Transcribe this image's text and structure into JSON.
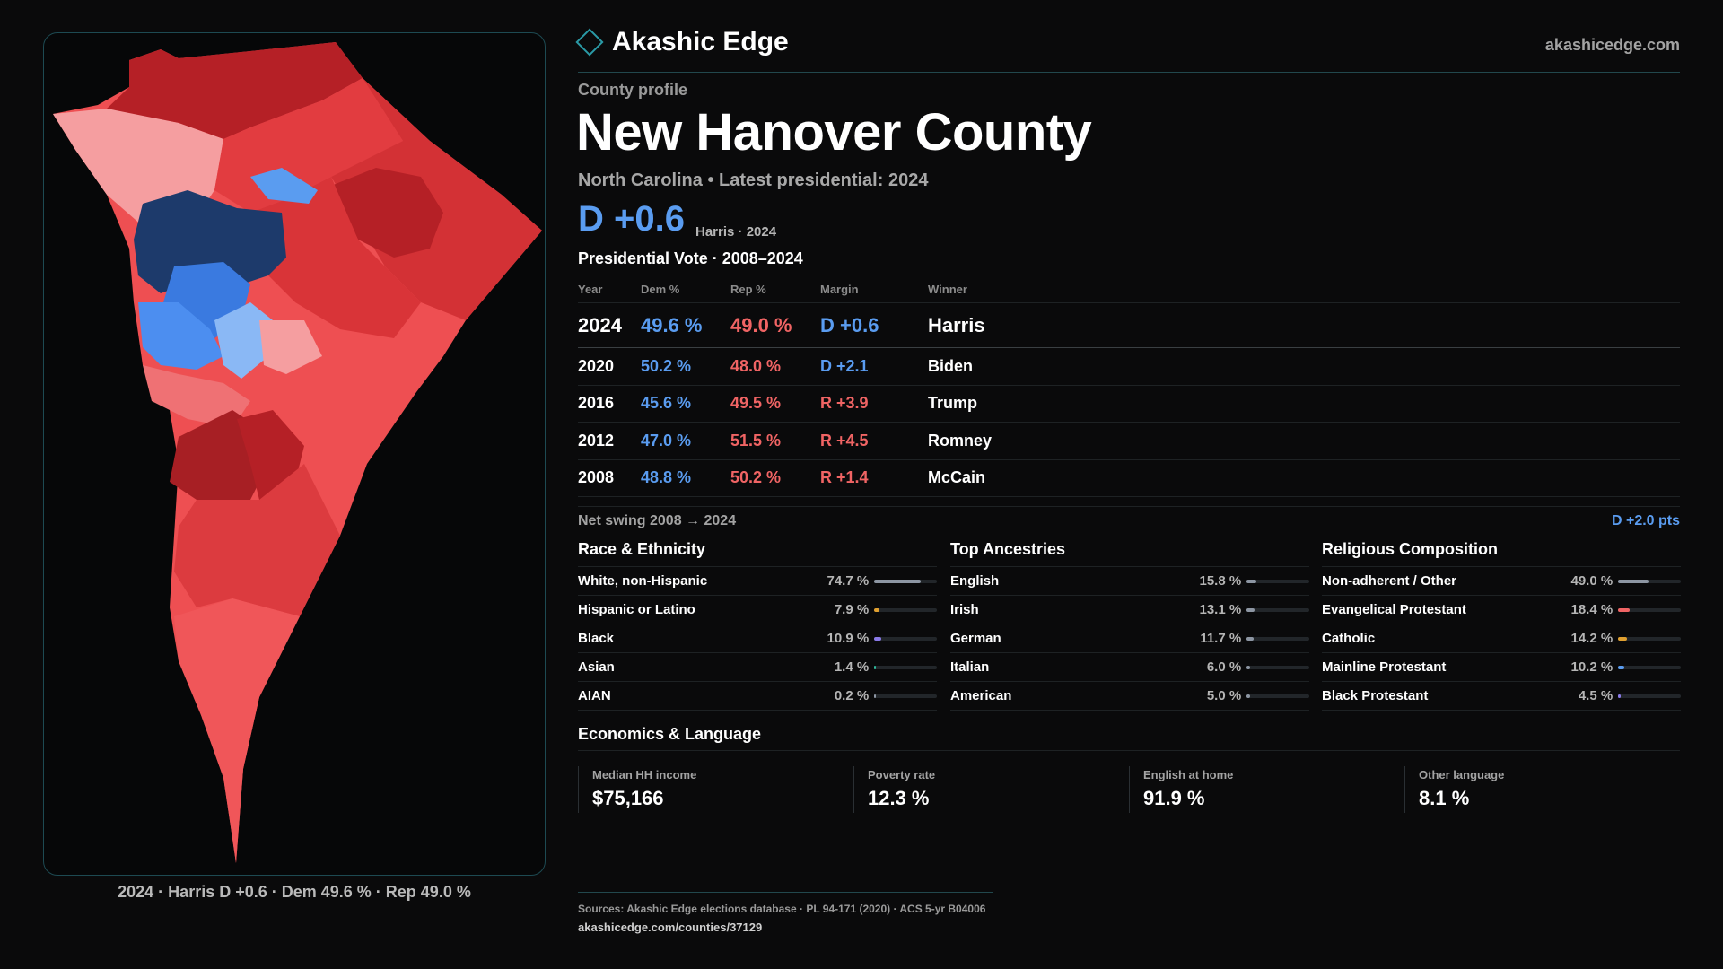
{
  "brand": {
    "name": "Akashic Edge",
    "domain": "akashicedge.com"
  },
  "profile": {
    "kicker": "County profile",
    "county": "New Hanover County",
    "subtitle": "North Carolina • Latest presidential: 2024",
    "margin": "D +0.6",
    "margin_note": "Harris · 2024"
  },
  "map": {
    "caption": "2024 · Harris D +0.6 · Dem 49.6 % · Rep 49.0 %"
  },
  "vote": {
    "title": "Presidential Vote · 2008–2024",
    "headers": {
      "year": "Year",
      "dem": "Dem %",
      "rep": "Rep %",
      "margin": "Margin",
      "winner": "Winner"
    },
    "rows": [
      {
        "year": "2024",
        "dem": "49.6 %",
        "rep": "49.0 %",
        "margin": "D +0.6",
        "party": "D",
        "winner": "Harris"
      },
      {
        "year": "2020",
        "dem": "50.2 %",
        "rep": "48.0 %",
        "margin": "D +2.1",
        "party": "D",
        "winner": "Biden"
      },
      {
        "year": "2016",
        "dem": "45.6 %",
        "rep": "49.5 %",
        "margin": "R +3.9",
        "party": "R",
        "winner": "Trump"
      },
      {
        "year": "2012",
        "dem": "47.0 %",
        "rep": "51.5 %",
        "margin": "R +4.5",
        "party": "R",
        "winner": "Romney"
      },
      {
        "year": "2008",
        "dem": "48.8 %",
        "rep": "50.2 %",
        "margin": "R +1.4",
        "party": "R",
        "winner": "McCain"
      }
    ],
    "swing_label": "Net swing 2008 → 2024",
    "swing_value": "D +2.0 pts"
  },
  "race": {
    "title": "Race & Ethnicity",
    "rows": [
      {
        "label": "White, non-Hispanic",
        "value": "74.7 %",
        "fraction": 0.747,
        "color": "#8d96a3"
      },
      {
        "label": "Hispanic or Latino",
        "value": "7.9 %",
        "fraction": 0.079,
        "color": "#e0a030"
      },
      {
        "label": "Black",
        "value": "10.9 %",
        "fraction": 0.109,
        "color": "#8a7ae8"
      },
      {
        "label": "Asian",
        "value": "1.4 %",
        "fraction": 0.014,
        "color": "#2fb89a"
      },
      {
        "label": "AIAN",
        "value": "0.2 %",
        "fraction": 0.002,
        "color": "#8d96a3"
      }
    ]
  },
  "ancestry": {
    "title": "Top Ancestries",
    "rows": [
      {
        "label": "English",
        "value": "15.8 %",
        "fraction": 0.158,
        "color": "#8d96a3"
      },
      {
        "label": "Irish",
        "value": "13.1 %",
        "fraction": 0.131,
        "color": "#8d96a3"
      },
      {
        "label": "German",
        "value": "11.7 %",
        "fraction": 0.117,
        "color": "#8d96a3"
      },
      {
        "label": "Italian",
        "value": "6.0 %",
        "fraction": 0.06,
        "color": "#8d96a3"
      },
      {
        "label": "American",
        "value": "5.0 %",
        "fraction": 0.05,
        "color": "#8d96a3"
      }
    ]
  },
  "religion": {
    "title": "Religious Composition",
    "rows": [
      {
        "label": "Non-adherent / Other",
        "value": "49.0 %",
        "fraction": 0.49,
        "color": "#8d96a3"
      },
      {
        "label": "Evangelical Protestant",
        "value": "18.4 %",
        "fraction": 0.184,
        "color": "#f06464"
      },
      {
        "label": "Catholic",
        "value": "14.2 %",
        "fraction": 0.142,
        "color": "#e0a030"
      },
      {
        "label": "Mainline Protestant",
        "value": "10.2 %",
        "fraction": 0.102,
        "color": "#5a9cf0"
      },
      {
        "label": "Black Protestant",
        "value": "4.5 %",
        "fraction": 0.045,
        "color": "#8a7ae8"
      }
    ]
  },
  "economics": {
    "title": "Economics & Language",
    "cards": [
      {
        "label": "Median HH income",
        "value": "$75,166"
      },
      {
        "label": "Poverty rate",
        "value": "12.3 %"
      },
      {
        "label": "English at home",
        "value": "91.9 %"
      },
      {
        "label": "Other language",
        "value": "8.1 %"
      }
    ]
  },
  "footer": {
    "sources": "Sources: Akashic Edge elections database · PL 94-171 (2020) · ACS 5-yr B04006",
    "url": "akashicedge.com/counties/37129"
  },
  "colors": {
    "dem": "#5a9cf0",
    "rep": "#f06464",
    "accent": "#2a9aa6"
  }
}
